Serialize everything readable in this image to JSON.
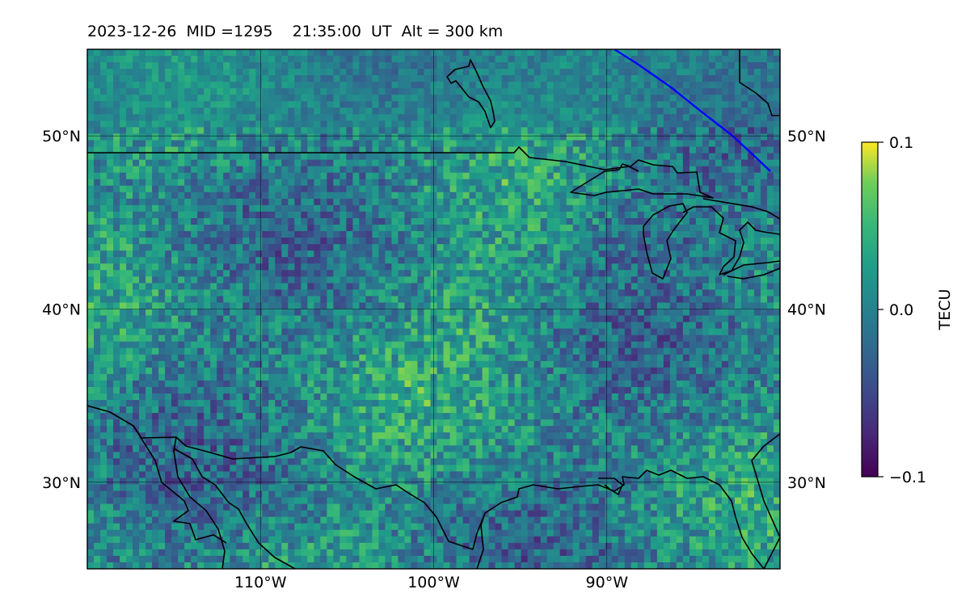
{
  "title": {
    "date": "2023-12-26",
    "mid": "MID =1295",
    "time": "21:35:00  UT",
    "alt": "Alt = 300 km"
  },
  "map": {
    "lon_range": [
      -120,
      -80
    ],
    "lat_range": [
      25,
      55
    ],
    "gridlines": true,
    "x_ticks": [
      {
        "value": -110,
        "label": "110°W"
      },
      {
        "value": -100,
        "label": "100°W"
      },
      {
        "value": -90,
        "label": "90°W"
      }
    ],
    "y_ticks": [
      {
        "value": 50,
        "label": "50°N"
      },
      {
        "value": 40,
        "label": "40°N"
      },
      {
        "value": 30,
        "label": "30°N"
      }
    ],
    "terminator_color": "#0000ff",
    "coast_color": "#000000"
  },
  "colorbar": {
    "label": "TECU",
    "min": -0.1,
    "max": 0.1,
    "ticks": [
      {
        "value": 0.1,
        "label": "0.1"
      },
      {
        "value": 0.0,
        "label": "0.0"
      },
      {
        "value": -0.1,
        "label": "−0.1"
      }
    ],
    "colormap": "viridis",
    "placement": "right"
  }
}
